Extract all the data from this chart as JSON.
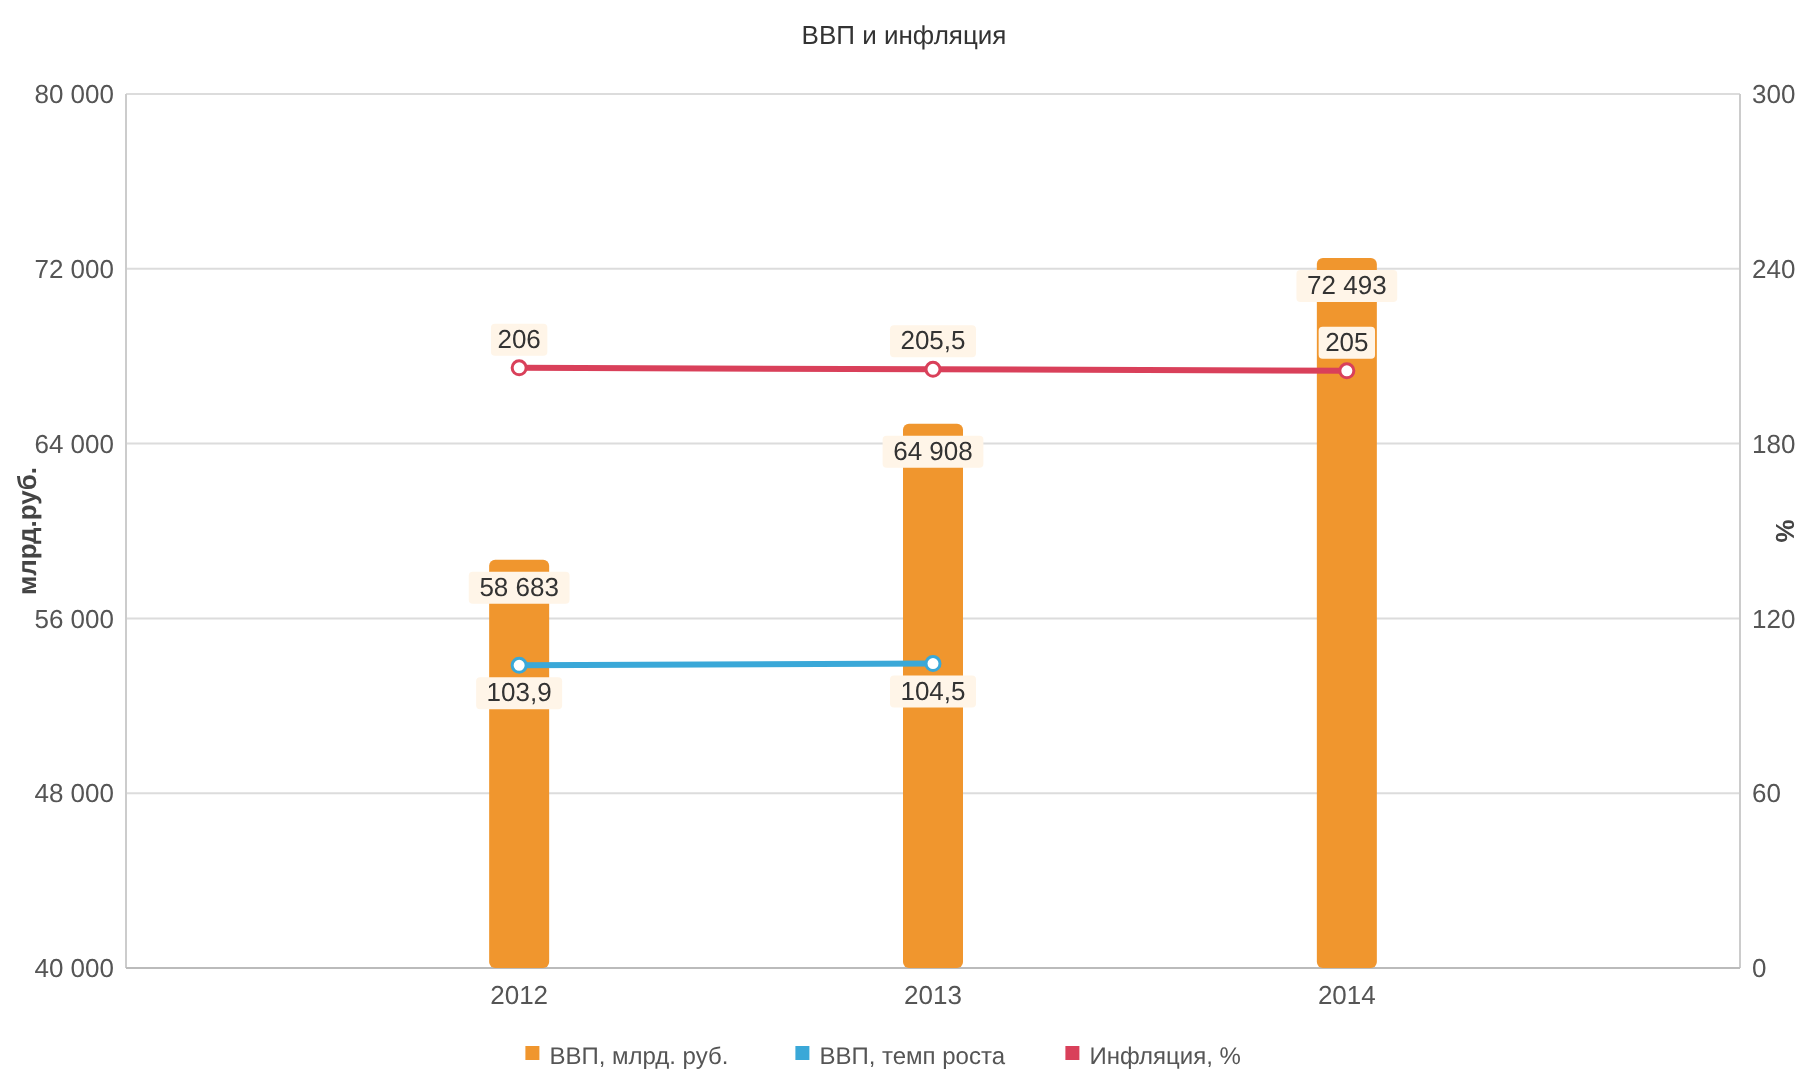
{
  "chart_data": {
    "type": "bar",
    "title": "ВВП и инфляция",
    "ylabel": "млрд.руб.",
    "y2label": "%",
    "categories": [
      "2012",
      "2013",
      "2014"
    ],
    "series": [
      {
        "name": "ВВП, млрд. руб.",
        "color": "#f0962e",
        "values": [
          58683,
          64908,
          72493
        ],
        "value_labels": [
          "58 683",
          "64 908",
          "72 493"
        ]
      },
      {
        "name": "ВВП, темп роста",
        "type": "line",
        "axis": "y2",
        "color": "#3aa8d8",
        "values": [
          103.9,
          104.5,
          null
        ],
        "value_labels": [
          "103,9",
          "104,5",
          null
        ]
      },
      {
        "name": "Инфляция, %",
        "type": "line",
        "axis": "y2",
        "color": "#d9405a",
        "values": [
          206,
          205.5,
          205
        ],
        "value_labels": [
          "206",
          "205,5",
          "205"
        ]
      }
    ],
    "ylim": [
      40000,
      80000
    ],
    "yticks": [
      {
        "value": 40000,
        "label": "40 000"
      },
      {
        "value": 48000,
        "label": "48 000"
      },
      {
        "value": 56000,
        "label": "56 000"
      },
      {
        "value": 64000,
        "label": "64 000"
      },
      {
        "value": 72000,
        "label": "72 000"
      },
      {
        "value": 80000,
        "label": "80 000"
      }
    ],
    "y2lim": [
      0,
      300
    ],
    "y2ticks": [
      0,
      60,
      120,
      180,
      240,
      300
    ],
    "grid": "y",
    "legend": "bottom",
    "marker": "circle",
    "line_style": "solid"
  }
}
